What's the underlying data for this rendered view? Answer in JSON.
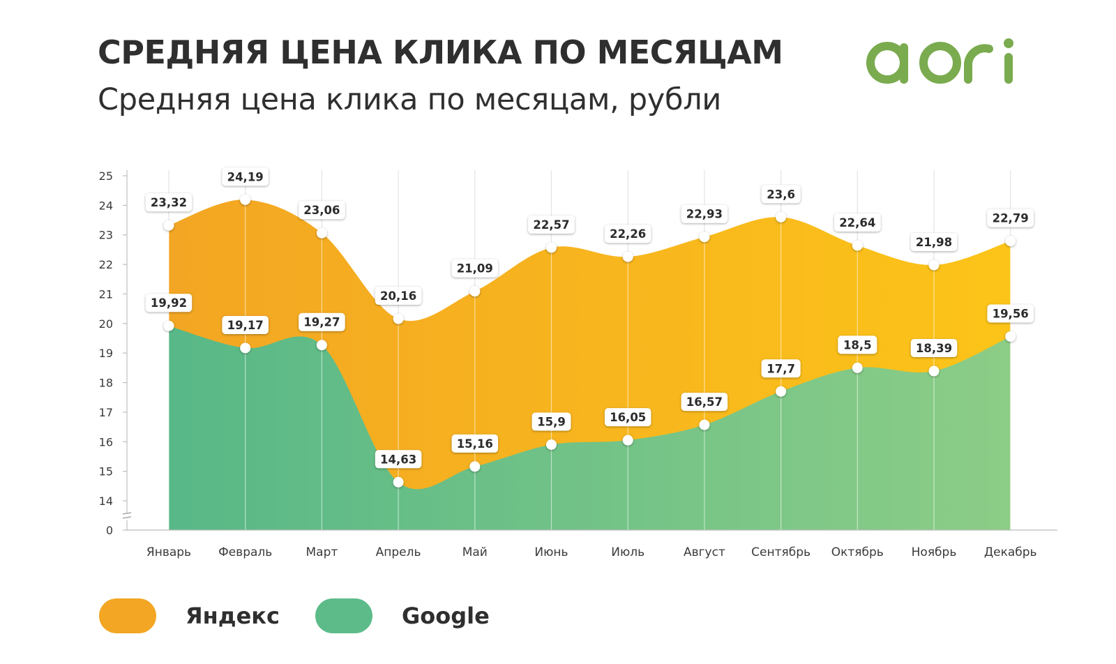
{
  "header": {
    "title": "СРЕДНЯЯ ЦЕНА КЛИКА ПО МЕСЯЦАМ",
    "subtitle": "Средняя цена клика по месяцам, рубли"
  },
  "logo": {
    "text": "aori",
    "color": "#7aab4f"
  },
  "colors": {
    "yandex": "#f3a623",
    "yandex_end": "#fcc419",
    "google": "#58b887",
    "google_end": "#8ccd87"
  },
  "legend": [
    {
      "label": "Яндекс",
      "color": "#f3a623"
    },
    {
      "label": "Google",
      "color": "#5dbb8a"
    }
  ],
  "chart_data": {
    "type": "area",
    "title": "Средняя цена клика по месяцам, рубли",
    "categories": [
      "Январь",
      "Февраль",
      "Март",
      "Апрель",
      "Май",
      "Июнь",
      "Июль",
      "Август",
      "Сентябрь",
      "Октябрь",
      "Ноябрь",
      "Декабрь"
    ],
    "series": [
      {
        "name": "Яндекс",
        "values": [
          23.32,
          24.19,
          23.06,
          20.16,
          21.09,
          22.57,
          22.26,
          22.93,
          23.6,
          22.64,
          21.98,
          22.79
        ],
        "labels": [
          "23,32",
          "24,19",
          "23,06",
          "20,16",
          "21,09",
          "22,57",
          "22,26",
          "22,93",
          "23,6",
          "22,64",
          "21,98",
          "22,79"
        ]
      },
      {
        "name": "Google",
        "values": [
          19.92,
          19.17,
          19.27,
          14.63,
          15.16,
          15.9,
          16.05,
          16.57,
          17.7,
          18.5,
          18.39,
          19.56
        ],
        "labels": [
          "19,92",
          "19,17",
          "19,27",
          "14,63",
          "15,16",
          "15,9",
          "16,05",
          "16,57",
          "17,7",
          "18,5",
          "18,39",
          "19,56"
        ]
      }
    ],
    "y_ticks": [
      "0",
      "14",
      "15",
      "16",
      "17",
      "18",
      "19",
      "20",
      "21",
      "22",
      "23",
      "24",
      "25"
    ],
    "y_axis_break": "0 to 14",
    "ylim": [
      13.4,
      25
    ],
    "grid": "vertical lines at categories",
    "legend_position": "bottom"
  }
}
